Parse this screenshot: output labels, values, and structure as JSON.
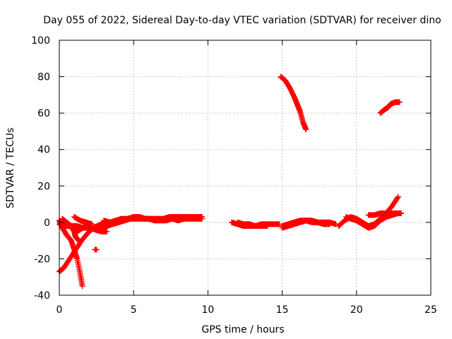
{
  "chart_data": {
    "type": "scatter",
    "title": "Day 055 of 2022, Sidereal Day-to-day VTEC variation (SDTVAR) for receiver dino",
    "xlabel": "GPS time / hours",
    "ylabel": "SDTVAR / TECUs",
    "xlim": [
      0,
      25
    ],
    "ylim": [
      -40,
      100
    ],
    "x_ticks": [
      0,
      5,
      10,
      15,
      20,
      25
    ],
    "y_ticks": [
      -40,
      -20,
      0,
      20,
      40,
      60,
      80,
      100
    ],
    "grid": true,
    "marker": "+",
    "color": "#ff0000",
    "series": [
      {
        "segments": [
          [
            [
              0.0,
              -27
            ],
            [
              0.3,
              -25
            ],
            [
              0.7,
              -20
            ],
            [
              1.1,
              -15
            ],
            [
              1.5,
              -10
            ],
            [
              1.9,
              -6
            ],
            [
              2.3,
              -3
            ],
            [
              2.8,
              -1
            ],
            [
              3.2,
              -1
            ]
          ],
          [
            [
              0.0,
              1
            ],
            [
              0.2,
              -3
            ],
            [
              0.5,
              -7
            ],
            [
              0.8,
              -10
            ],
            [
              1.0,
              -15
            ],
            [
              1.2,
              -20
            ],
            [
              1.4,
              -28
            ],
            [
              1.55,
              -35
            ]
          ],
          [
            [
              0.2,
              2
            ],
            [
              0.5,
              0
            ],
            [
              0.8,
              -3
            ],
            [
              1.2,
              -5
            ],
            [
              1.6,
              -3
            ],
            [
              1.9,
              -1
            ]
          ],
          [
            [
              0.5,
              0
            ],
            [
              0.8,
              -2
            ],
            [
              1.0,
              -5
            ],
            [
              1.1,
              -8
            ],
            [
              1.3,
              -10
            ]
          ],
          [
            [
              0.0,
              -1
            ],
            [
              0.4,
              -2
            ],
            [
              0.8,
              -2
            ],
            [
              1.2,
              -2
            ],
            [
              1.6,
              -3
            ],
            [
              2.0,
              -3
            ],
            [
              2.4,
              -4
            ],
            [
              2.8,
              -5
            ],
            [
              3.2,
              -5
            ]
          ],
          [
            [
              1.0,
              3
            ],
            [
              1.4,
              1
            ],
            [
              1.8,
              0
            ],
            [
              2.2,
              -1
            ]
          ],
          [
            [
              2.4,
              -15
            ],
            [
              2.5,
              -15
            ]
          ],
          [
            [
              2.8,
              -3
            ],
            [
              3.2,
              -2
            ],
            [
              3.6,
              -1
            ],
            [
              4.0,
              0
            ],
            [
              4.4,
              1
            ],
            [
              4.8,
              2
            ],
            [
              5.2,
              2
            ],
            [
              5.6,
              2
            ],
            [
              6.0,
              2
            ],
            [
              6.4,
              1
            ],
            [
              6.8,
              1
            ],
            [
              7.2,
              1
            ],
            [
              7.6,
              2
            ],
            [
              8.0,
              1
            ],
            [
              8.4,
              2
            ],
            [
              8.8,
              2
            ],
            [
              9.2,
              2
            ],
            [
              9.6,
              2
            ]
          ],
          [
            [
              3.0,
              1
            ],
            [
              3.4,
              0
            ],
            [
              3.8,
              1
            ],
            [
              4.2,
              2
            ],
            [
              4.6,
              2
            ],
            [
              5.0,
              3
            ],
            [
              5.4,
              3
            ],
            [
              5.8,
              2
            ],
            [
              6.2,
              2
            ],
            [
              6.6,
              2
            ],
            [
              7.0,
              2
            ],
            [
              7.4,
              3
            ],
            [
              7.8,
              3
            ],
            [
              8.2,
              3
            ],
            [
              8.6,
              3
            ],
            [
              9.0,
              3
            ],
            [
              9.4,
              3
            ],
            [
              9.6,
              3
            ]
          ],
          [
            [
              11.6,
              0
            ],
            [
              12.0,
              -1
            ],
            [
              12.4,
              -2
            ],
            [
              12.8,
              -2
            ],
            [
              13.2,
              -2
            ],
            [
              13.6,
              -1
            ],
            [
              14.0,
              -1
            ],
            [
              14.4,
              -1
            ],
            [
              14.8,
              -1
            ]
          ],
          [
            [
              12.0,
              0
            ],
            [
              12.4,
              -1
            ],
            [
              12.8,
              -1
            ],
            [
              13.2,
              -2
            ],
            [
              13.6,
              -2
            ],
            [
              14.0,
              -2
            ]
          ],
          [
            [
              15.0,
              -3
            ],
            [
              15.4,
              -2
            ],
            [
              15.8,
              -1
            ],
            [
              16.2,
              0
            ],
            [
              16.6,
              1
            ],
            [
              17.0,
              1
            ],
            [
              17.4,
              0
            ],
            [
              17.8,
              0
            ],
            [
              18.2,
              0
            ],
            [
              18.6,
              -1
            ]
          ],
          [
            [
              15.0,
              -2
            ],
            [
              15.4,
              -1
            ],
            [
              15.8,
              0
            ],
            [
              16.2,
              1
            ],
            [
              16.6,
              1
            ],
            [
              17.0,
              0
            ],
            [
              17.4,
              0
            ],
            [
              17.8,
              -1
            ],
            [
              18.2,
              -1
            ]
          ],
          [
            [
              18.8,
              -2
            ],
            [
              19.2,
              1
            ],
            [
              19.6,
              3
            ],
            [
              20.0,
              2
            ],
            [
              20.4,
              0
            ],
            [
              20.8,
              -2
            ],
            [
              21.2,
              -1
            ],
            [
              21.6,
              2
            ],
            [
              22.0,
              5
            ],
            [
              22.4,
              9
            ],
            [
              22.8,
              14
            ]
          ],
          [
            [
              19.3,
              3
            ],
            [
              19.6,
              2
            ],
            [
              20.0,
              1
            ],
            [
              20.4,
              -1
            ],
            [
              20.8,
              -3
            ],
            [
              21.2,
              -2
            ],
            [
              21.6,
              1
            ],
            [
              22.0,
              3
            ],
            [
              22.4,
              4
            ],
            [
              22.8,
              5
            ],
            [
              23.0,
              5
            ]
          ],
          [
            [
              20.8,
              4
            ],
            [
              21.2,
              4
            ],
            [
              21.6,
              5
            ],
            [
              22.0,
              5
            ],
            [
              22.4,
              5
            ],
            [
              22.8,
              5
            ],
            [
              23.0,
              5
            ]
          ],
          [
            [
              14.9,
              80
            ],
            [
              15.2,
              78
            ],
            [
              15.5,
              74
            ],
            [
              15.8,
              69
            ],
            [
              16.0,
              65
            ],
            [
              16.2,
              61
            ],
            [
              16.4,
              55
            ],
            [
              16.6,
              51
            ]
          ],
          [
            [
              21.6,
              60
            ],
            [
              21.9,
              62
            ],
            [
              22.1,
              63
            ],
            [
              22.3,
              65
            ],
            [
              22.6,
              66
            ],
            [
              22.9,
              66
            ]
          ]
        ]
      }
    ]
  }
}
